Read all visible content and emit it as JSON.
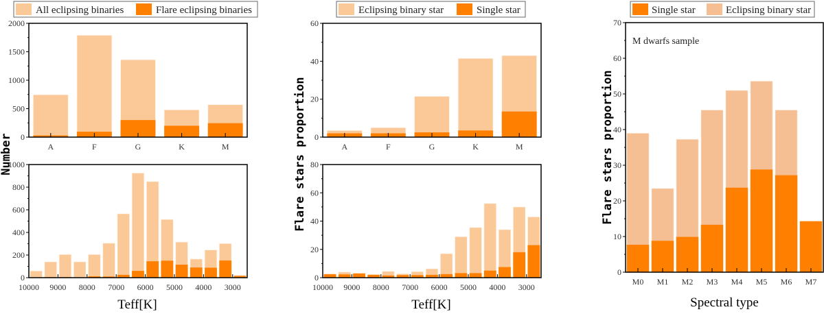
{
  "colors": {
    "light": "#FBC897",
    "dark": "#FF8000",
    "axis": "#000000"
  },
  "legends": {
    "left": {
      "light": "All eclipsing binaries",
      "dark": "Flare eclipsing binaries"
    },
    "middle": {
      "light": "Eclipsing binary star",
      "dark": "Single star"
    },
    "right": {
      "dark": "Single star",
      "light": "Eclipsing binary star"
    }
  },
  "labels": {
    "left_ylabel": "Number",
    "middle_ylabel": "Flare stars proportion",
    "right_ylabel": "Flare stars proportion",
    "left_xlabel": "Teff[K]",
    "middle_xlabel": "Teff[K]",
    "right_xlabel": "Spectral type",
    "right_annotation": "M dwarfs sample"
  },
  "chart_data": [
    {
      "id": "left-top",
      "type": "bar",
      "categories": [
        "A",
        "F",
        "G",
        "K",
        "M"
      ],
      "series": [
        {
          "name": "All eclipsing binaries",
          "values": [
            745,
            1790,
            1360,
            480,
            570
          ]
        },
        {
          "name": "Flare eclipsing binaries",
          "values": [
            30,
            95,
            300,
            200,
            245
          ]
        }
      ],
      "ylim": [
        0,
        2000
      ],
      "yticks": [
        0,
        500,
        1000,
        1500,
        2000
      ],
      "ylabel": "Number"
    },
    {
      "id": "left-bottom",
      "type": "bar",
      "x": [
        9750,
        9250,
        8750,
        8250,
        7750,
        7250,
        6750,
        6250,
        5750,
        5250,
        4750,
        4250,
        3750,
        3250,
        2750
      ],
      "bin_width": 500,
      "series": [
        {
          "name": "All eclipsing binaries",
          "values": [
            60,
            140,
            205,
            140,
            205,
            305,
            565,
            925,
            850,
            515,
            315,
            165,
            245,
            302,
            22
          ]
        },
        {
          "name": "Flare eclipsing binaries",
          "values": [
            0,
            5,
            5,
            3,
            12,
            10,
            25,
            60,
            145,
            150,
            115,
            90,
            88,
            152,
            15
          ]
        }
      ],
      "xlim": [
        10000,
        2500
      ],
      "xticks": [
        10000,
        9000,
        8000,
        7000,
        6000,
        5000,
        4000,
        3000
      ],
      "ylim": [
        0,
        1000
      ],
      "yticks": [
        0,
        200,
        400,
        600,
        800,
        1000
      ],
      "xlabel": "Teff[K]"
    },
    {
      "id": "middle-top",
      "type": "bar",
      "categories": [
        "A",
        "F",
        "G",
        "K",
        "M"
      ],
      "series": [
        {
          "name": "Eclipsing binary star",
          "values": [
            3.5,
            5,
            21.5,
            41.5,
            43
          ]
        },
        {
          "name": "Single star",
          "values": [
            2,
            2,
            2.5,
            3.5,
            13.5
          ]
        }
      ],
      "ylim": [
        0,
        60
      ],
      "yticks": [
        0,
        20,
        40,
        60
      ],
      "ylabel": "Flare stars proportion"
    },
    {
      "id": "middle-bottom",
      "type": "bar",
      "x": [
        9750,
        9250,
        8750,
        8250,
        7750,
        7250,
        6750,
        6250,
        5750,
        5250,
        4750,
        4250,
        3750,
        3250,
        2750
      ],
      "bin_width": 500,
      "series": [
        {
          "name": "Eclipsing binary star",
          "values": [
            2.5,
            4,
            3,
            2.3,
            4.5,
            2.8,
            4.3,
            6.3,
            17,
            29,
            35.5,
            52.5,
            34,
            50,
            43
          ]
        },
        {
          "name": "Single star",
          "values": [
            2.5,
            2.3,
            3,
            2,
            1.5,
            1.8,
            1.8,
            2,
            2.5,
            3.2,
            3.2,
            5,
            7.5,
            18,
            23
          ]
        }
      ],
      "xlim": [
        10000,
        2500
      ],
      "xticks": [
        10000,
        9000,
        8000,
        7000,
        6000,
        5000,
        4000,
        3000
      ],
      "ylim": [
        0,
        80
      ],
      "yticks": [
        0,
        20,
        40,
        60,
        80
      ],
      "xlabel": "Teff[K]"
    },
    {
      "id": "right",
      "type": "bar",
      "categories": [
        "M0",
        "M1",
        "M2",
        "M3",
        "M4",
        "M5",
        "M6",
        "M7"
      ],
      "series": [
        {
          "name": "Eclipsing binary star",
          "values": [
            39,
            23.5,
            37.3,
            45.5,
            51,
            53.6,
            45.5,
            null
          ]
        },
        {
          "name": "Single star",
          "values": [
            7.7,
            8.8,
            9.9,
            13.3,
            23.7,
            28.8,
            27.2,
            14.3
          ]
        }
      ],
      "ylim": [
        0,
        70
      ],
      "yticks": [
        0,
        10,
        20,
        30,
        40,
        50,
        60,
        70
      ],
      "xlabel": "Spectral type",
      "ylabel": "Flare stars proportion",
      "annotation": "M dwarfs sample"
    }
  ]
}
